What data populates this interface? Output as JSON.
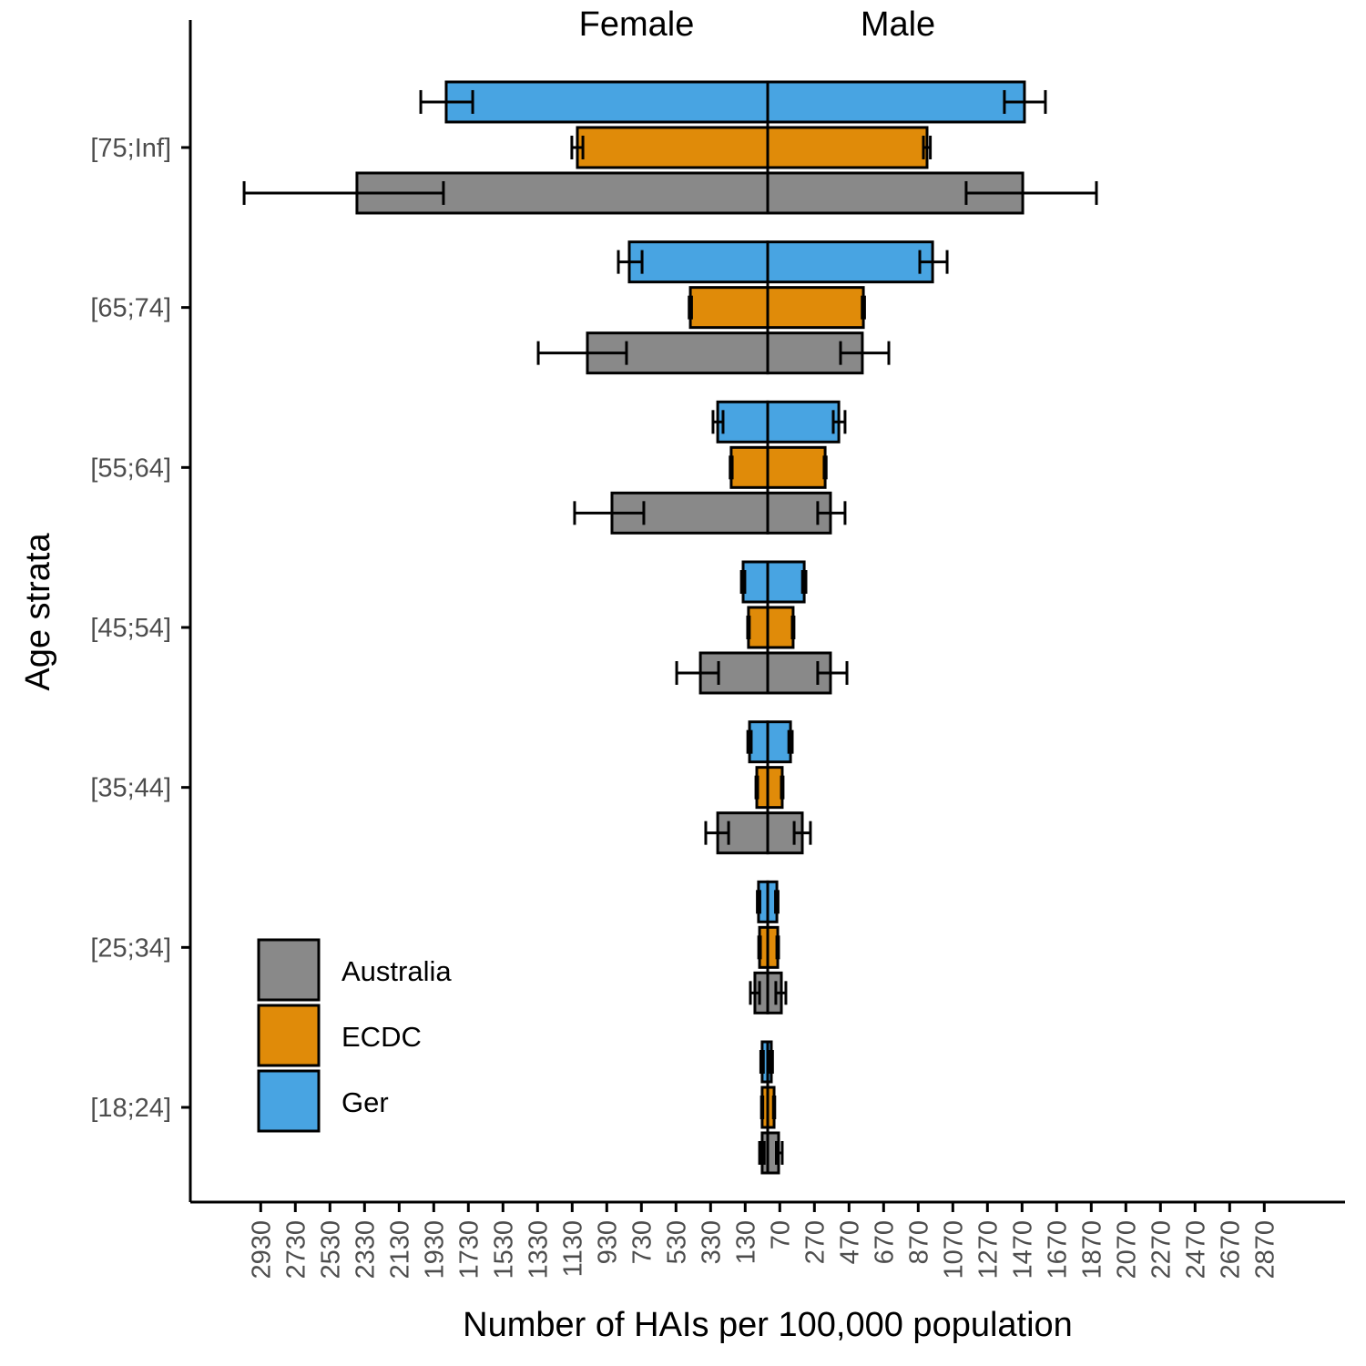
{
  "chart_data": {
    "type": "bar",
    "orientation": "horizontal",
    "subtype": "population-pyramid",
    "title": "",
    "xlabel": "Number of HAIs per 100,000 population",
    "ylabel": "Age strata",
    "side_labels": {
      "left": "Female",
      "right": "Male"
    },
    "x_ticks": [
      "2930",
      "2730",
      "2530",
      "2330",
      "2130",
      "1930",
      "1730",
      "1530",
      "1330",
      "1130",
      "930",
      "730",
      "530",
      "330",
      "130",
      "70",
      "270",
      "470",
      "670",
      "870",
      "1070",
      "1270",
      "1470",
      "1670",
      "1870",
      "2070",
      "2270",
      "2470",
      "2670",
      "2870"
    ],
    "x_tick_values": [
      -2930,
      -2730,
      -2530,
      -2330,
      -2130,
      -1930,
      -1730,
      -1530,
      -1330,
      -1130,
      -930,
      -730,
      -530,
      -330,
      -130,
      70,
      270,
      470,
      670,
      870,
      1070,
      1270,
      1470,
      1670,
      1870,
      2070,
      2270,
      2470,
      2670,
      2870
    ],
    "xlim": [
      -3250,
      3350
    ],
    "categories": [
      "[18;24]",
      "[25;34]",
      "[35;44]",
      "[45;54]",
      "[55;64]",
      "[65;74]",
      "[75;Inf]"
    ],
    "legend": {
      "position": "bottom-left",
      "entries": [
        "Australia",
        "ECDC",
        "Ger"
      ]
    },
    "colors": {
      "Australia": "#898989",
      "ECDC": "#E08B09",
      "Ger": "#48A4E2"
    },
    "series": [
      {
        "name": "Ger",
        "female": [
          32,
          53,
          105,
          142,
          289,
          800,
          1858
        ],
        "male": [
          21,
          53,
          132,
          211,
          411,
          953,
          1484
        ],
        "female_ci": [
          [
            25,
            40
          ],
          [
            45,
            60
          ],
          [
            95,
            115
          ],
          [
            132,
            152
          ],
          [
            258,
            316
          ],
          [
            726,
            863
          ],
          [
            1705,
            2005
          ]
        ],
        "male_ci": [
          [
            15,
            28
          ],
          [
            45,
            60
          ],
          [
            122,
            142
          ],
          [
            201,
            221
          ],
          [
            379,
            447
          ],
          [
            879,
            1037
          ],
          [
            1368,
            1605
          ]
        ]
      },
      {
        "name": "ECDC",
        "female": [
          32,
          47,
          63,
          111,
          211,
          447,
          1100
        ],
        "male": [
          37,
          58,
          84,
          147,
          332,
          553,
          921
        ],
        "female_ci": [
          [
            28,
            36
          ],
          [
            42,
            52
          ],
          [
            58,
            68
          ],
          [
            106,
            116
          ],
          [
            205,
            217
          ],
          [
            440,
            454
          ],
          [
            1068,
            1132
          ]
        ],
        "male_ci": [
          [
            33,
            41
          ],
          [
            53,
            63
          ],
          [
            79,
            89
          ],
          [
            142,
            152
          ],
          [
            326,
            338
          ],
          [
            546,
            560
          ],
          [
            900,
            940
          ]
        ]
      },
      {
        "name": "Australia",
        "female": [
          32,
          74,
          289,
          389,
          900,
          1042,
          2374
        ],
        "male": [
          63,
          79,
          200,
          363,
          363,
          547,
          1474
        ],
        "female_ci": [
          [
            20,
            47
          ],
          [
            47,
            100
          ],
          [
            226,
            358
          ],
          [
            284,
            526
          ],
          [
            716,
            1116
          ],
          [
            816,
            1326
          ],
          [
            1874,
            3026
          ]
        ],
        "male_ci": [
          [
            50,
            84
          ],
          [
            47,
            105
          ],
          [
            153,
            247
          ],
          [
            289,
            458
          ],
          [
            289,
            447
          ],
          [
            421,
            700
          ],
          [
            1147,
            1900
          ]
        ]
      }
    ]
  }
}
